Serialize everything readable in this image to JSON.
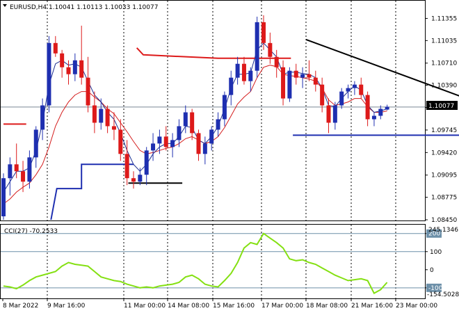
{
  "header": {
    "symbol": "EURUSD,H4",
    "ohlc": "1.10041 1.10113 1.10033 1.10077",
    "indicator": "CCI(27) -70.2533"
  },
  "current_price": "1.10077",
  "indicator_scale": {
    "top": "245.1346",
    "bottom": "-154.5028"
  },
  "colors": {
    "bull": "#1e2fb0",
    "bear": "#dd1a1a",
    "ma_fast": "#1a2c8f",
    "ma_slow": "#d41c1c",
    "cci_line": "#84e012",
    "cci_levels": "#6c8fa8",
    "trendline": "#000000"
  },
  "chart_data": [
    {
      "type": "candlestick",
      "title": "EURUSD,H4",
      "ylim": [
        1.0845,
        1.1154
      ],
      "y_ticks": [
        "1.11355",
        "1.11035",
        "1.10710",
        "1.10390",
        "1.10070",
        "1.09745",
        "1.09420",
        "1.09095",
        "1.08775",
        "1.08450"
      ],
      "x_ticks": [
        "8 Mar 2022",
        "9 Mar 16:00",
        "11 Mar 00:00",
        "14 Mar 08:00",
        "15 Mar 16:00",
        "17 Mar 00:00",
        "18 Mar 08:00",
        "21 Mar 16:00",
        "23 Mar 00:00"
      ],
      "candles": [
        [
          1.085,
          1.0912,
          1.0845,
          1.0905
        ],
        [
          1.0905,
          1.0935,
          1.088,
          1.0925
        ],
        [
          1.0925,
          1.0955,
          1.0905,
          1.0915
        ],
        [
          1.0915,
          1.093,
          1.0885,
          1.09
        ],
        [
          1.09,
          1.0945,
          1.089,
          1.0935
        ],
        [
          1.0935,
          1.098,
          1.092,
          1.0975
        ],
        [
          1.0975,
          1.102,
          1.096,
          1.101
        ],
        [
          1.101,
          1.111,
          1.1,
          1.11
        ],
        [
          1.11,
          1.111,
          1.108,
          1.1085
        ],
        [
          1.1085,
          1.109,
          1.105,
          1.1065
        ],
        [
          1.1065,
          1.1075,
          1.104,
          1.1055
        ],
        [
          1.1055,
          1.1085,
          1.1045,
          1.1075
        ],
        [
          1.1075,
          1.1125,
          1.104,
          1.105
        ],
        [
          1.105,
          1.108,
          1.1,
          1.101
        ],
        [
          1.101,
          1.103,
          1.097,
          1.0985
        ],
        [
          1.0985,
          1.102,
          1.0975,
          1.1005
        ],
        [
          1.1005,
          1.101,
          1.097,
          1.098
        ],
        [
          1.098,
          1.1,
          1.096,
          1.0975
        ],
        [
          1.0975,
          1.099,
          1.093,
          1.094
        ],
        [
          1.094,
          1.096,
          1.0895,
          1.0905
        ],
        [
          1.0905,
          1.0915,
          1.089,
          1.09
        ],
        [
          1.09,
          1.092,
          1.0895,
          1.091
        ],
        [
          1.091,
          1.095,
          1.0895,
          1.0945
        ],
        [
          1.0945,
          1.097,
          1.093,
          1.0955
        ],
        [
          1.0955,
          1.0975,
          1.094,
          1.0965
        ],
        [
          1.0965,
          1.098,
          1.0945,
          1.095
        ],
        [
          1.095,
          1.097,
          1.0935,
          1.096
        ],
        [
          1.096,
          1.099,
          1.095,
          1.098
        ],
        [
          1.098,
          1.101,
          1.097,
          1.1
        ],
        [
          1.1,
          1.1005,
          1.096,
          1.097
        ],
        [
          1.097,
          1.0975,
          1.093,
          1.094
        ],
        [
          1.094,
          1.0965,
          1.0925,
          1.0955
        ],
        [
          1.0955,
          1.098,
          1.0945,
          1.0975
        ],
        [
          1.0975,
          1.1,
          1.0965,
          1.099
        ],
        [
          1.099,
          1.103,
          1.098,
          1.1025
        ],
        [
          1.1025,
          1.106,
          1.101,
          1.105
        ],
        [
          1.105,
          1.108,
          1.104,
          1.107
        ],
        [
          1.107,
          1.108,
          1.104,
          1.1045
        ],
        [
          1.1045,
          1.1065,
          1.103,
          1.106
        ],
        [
          1.106,
          1.1138,
          1.105,
          1.113
        ],
        [
          1.113,
          1.114,
          1.109,
          1.11
        ],
        [
          1.11,
          1.1115,
          1.107,
          1.108
        ],
        [
          1.108,
          1.109,
          1.105,
          1.1065
        ],
        [
          1.1065,
          1.1075,
          1.101,
          1.102
        ],
        [
          1.102,
          1.1065,
          1.1015,
          1.106
        ],
        [
          1.106,
          1.107,
          1.104,
          1.105
        ],
        [
          1.105,
          1.1065,
          1.1035,
          1.1055
        ],
        [
          1.1055,
          1.1075,
          1.1045,
          1.105
        ],
        [
          1.105,
          1.106,
          1.103,
          1.104
        ],
        [
          1.104,
          1.105,
          1.1,
          1.101
        ],
        [
          1.101,
          1.102,
          1.097,
          1.0985
        ],
        [
          1.0985,
          1.1015,
          1.0975,
          1.101
        ],
        [
          1.101,
          1.1035,
          1.1005,
          1.103
        ],
        [
          1.103,
          1.104,
          1.102,
          1.1035
        ],
        [
          1.1035,
          1.1045,
          1.1025,
          1.104
        ],
        [
          1.104,
          1.105,
          1.102,
          1.1025
        ],
        [
          1.1025,
          1.103,
          1.098,
          1.099
        ],
        [
          1.099,
          1.1,
          1.098,
          1.0995
        ],
        [
          1.0995,
          1.101,
          1.099,
          1.1005
        ],
        [
          1.1004,
          1.1011,
          1.1003,
          1.1008
        ]
      ],
      "ma_fast": [
        1.0885,
        1.09,
        1.0915,
        1.0915,
        1.092,
        1.0945,
        1.0985,
        1.104,
        1.107,
        1.1075,
        1.1068,
        1.107,
        1.1065,
        1.1045,
        1.1025,
        1.1015,
        1.1,
        1.099,
        1.097,
        1.0945,
        1.0925,
        1.0915,
        1.0925,
        1.094,
        1.095,
        1.0955,
        1.0955,
        1.0965,
        1.098,
        1.0978,
        1.096,
        1.0955,
        1.0965,
        1.098,
        1.1005,
        1.1035,
        1.1055,
        1.1055,
        1.1057,
        1.109,
        1.11,
        1.109,
        1.108,
        1.1055,
        1.1058,
        1.1058,
        1.1056,
        1.1055,
        1.105,
        1.1035,
        1.101,
        1.1008,
        1.102,
        1.103,
        1.1038,
        1.1032,
        1.101,
        1.1,
        1.1002,
        1.1005
      ],
      "ma_slow": [
        1.0868,
        1.0875,
        1.0885,
        1.0892,
        1.0898,
        1.091,
        1.0925,
        1.095,
        1.098,
        1.1,
        1.1015,
        1.1025,
        1.103,
        1.103,
        1.1022,
        1.1015,
        1.1005,
        1.0998,
        1.0985,
        1.0972,
        1.0958,
        1.0945,
        1.094,
        1.0942,
        1.0945,
        1.0948,
        1.095,
        1.0955,
        1.0962,
        1.0965,
        1.096,
        1.0955,
        1.0958,
        1.0965,
        1.0978,
        1.0995,
        1.1012,
        1.1022,
        1.103,
        1.105,
        1.1065,
        1.1068,
        1.1066,
        1.1055,
        1.1053,
        1.1052,
        1.105,
        1.1048,
        1.1045,
        1.1035,
        1.1018,
        1.101,
        1.1012,
        1.1015,
        1.102,
        1.102,
        1.1008,
        1.1,
        1.1,
        1.1002
      ],
      "upper_step": {
        "x": [
          0,
          3.5
        ],
        "y": [
          1.0983,
          1.0983
        ]
      },
      "red_step": {
        "x": [
          20.5,
          21.5,
          33,
          44.2
        ],
        "y": [
          1.1093,
          1.1083,
          1.1078,
          1.1078
        ]
      },
      "blue_step": {
        "x": [
          7.3,
          8.2,
          12,
          12,
          20
        ],
        "y": [
          1.0845,
          1.089,
          1.089,
          1.0925,
          1.0925
        ]
      },
      "support_black": {
        "x": [
          19.2,
          27.5
        ],
        "y": [
          1.0898,
          1.0898
        ]
      },
      "support_blue": {
        "x": [
          44.5,
          70.5
        ],
        "y": [
          1.0967,
          1.0967
        ]
      },
      "trendline": {
        "x": [
          46.5,
          77
        ],
        "y": [
          1.1105,
          1.1
        ]
      },
      "hline_current": 1.10077
    },
    {
      "type": "line",
      "title": "CCI(27) -70.2533",
      "ylim": [
        -154.5028,
        245.1346
      ],
      "y_ticks": [
        "200",
        "100",
        "0",
        "-100"
      ],
      "levels": [
        200,
        100,
        -100
      ],
      "values": [
        -90,
        -95,
        -105,
        -85,
        -60,
        -40,
        -30,
        -20,
        -10,
        20,
        40,
        30,
        25,
        20,
        -10,
        -40,
        -50,
        -60,
        -65,
        -80,
        -90,
        -100,
        -95,
        -100,
        -90,
        -85,
        -80,
        -70,
        -40,
        -30,
        -50,
        -80,
        -90,
        -95,
        -60,
        -20,
        40,
        120,
        150,
        140,
        200,
        175,
        150,
        120,
        60,
        50,
        55,
        40,
        30,
        10,
        -10,
        -30,
        -45,
        -60,
        -55,
        -50,
        -60,
        -130,
        -110,
        -70
      ]
    }
  ]
}
